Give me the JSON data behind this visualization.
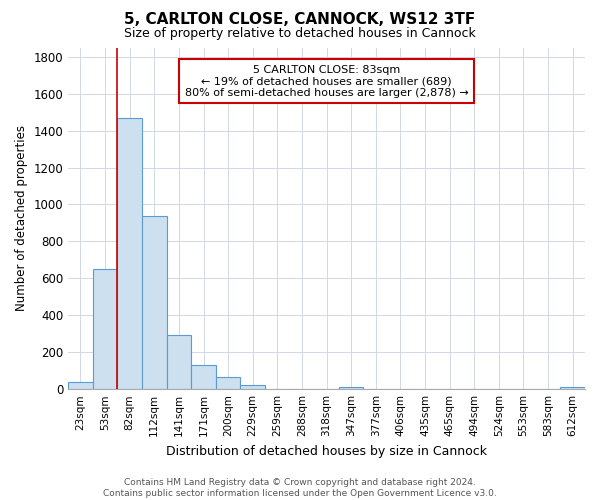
{
  "title": "5, CARLTON CLOSE, CANNOCK, WS12 3TF",
  "subtitle": "Size of property relative to detached houses in Cannock",
  "xlabel": "Distribution of detached houses by size in Cannock",
  "ylabel": "Number of detached properties",
  "bar_labels": [
    "23sqm",
    "53sqm",
    "82sqm",
    "112sqm",
    "141sqm",
    "171sqm",
    "200sqm",
    "229sqm",
    "259sqm",
    "288sqm",
    "318sqm",
    "347sqm",
    "377sqm",
    "406sqm",
    "435sqm",
    "465sqm",
    "494sqm",
    "524sqm",
    "553sqm",
    "583sqm",
    "612sqm"
  ],
  "bar_values": [
    40,
    650,
    1470,
    935,
    295,
    130,
    65,
    22,
    0,
    0,
    0,
    14,
    0,
    0,
    0,
    0,
    0,
    0,
    0,
    0,
    14
  ],
  "bar_color": "#cce0f0",
  "bar_edge_color": "#5b9bd5",
  "red_line_bar_index": 2,
  "red_line_color": "#cc0000",
  "ylim": [
    0,
    1850
  ],
  "yticks": [
    0,
    200,
    400,
    600,
    800,
    1000,
    1200,
    1400,
    1600,
    1800
  ],
  "annotation_title": "5 CARLTON CLOSE: 83sqm",
  "annotation_line1": "← 19% of detached houses are smaller (689)",
  "annotation_line2": "80% of semi-detached houses are larger (2,878) →",
  "footer_line1": "Contains HM Land Registry data © Crown copyright and database right 2024.",
  "footer_line2": "Contains public sector information licensed under the Open Government Licence v3.0.",
  "background_color": "#ffffff",
  "grid_color": "#d0d8e8"
}
